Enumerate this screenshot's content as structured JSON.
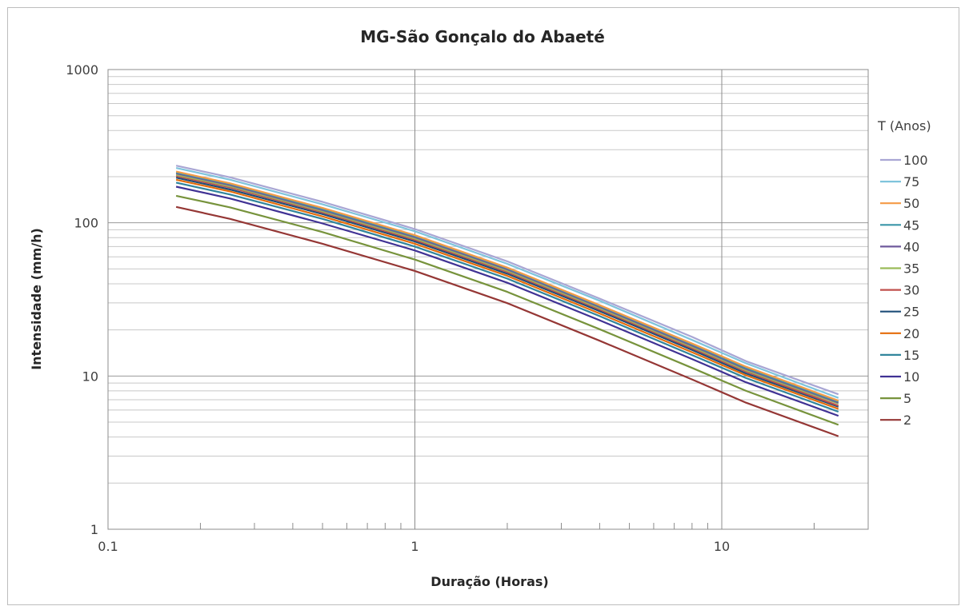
{
  "chart_data": {
    "type": "line",
    "title": "MG-São Gonçalo do Abaeté",
    "xlabel": "Duração (Horas)",
    "ylabel": "Intensidade (mm/h)",
    "xscale": "log",
    "yscale": "log",
    "xlim": [
      0.1,
      30
    ],
    "ylim": [
      1,
      1000
    ],
    "x_tick_labels": [
      "0.1",
      "1",
      "10"
    ],
    "y_tick_labels": [
      "1",
      "10",
      "100",
      "1000"
    ],
    "grid": true,
    "legend_title": "T (Anos)",
    "legend_position": "right",
    "x": [
      0.1667,
      0.25,
      0.5,
      1,
      2,
      4,
      8,
      12,
      24
    ],
    "series": [
      {
        "name": "100",
        "color": "#a9a6d4",
        "values": [
          236,
          198,
          137,
          91,
          56,
          32,
          18,
          12.5,
          7.6
        ]
      },
      {
        "name": "75",
        "color": "#7fc4dc",
        "values": [
          228,
          191,
          132,
          88,
          54,
          31,
          17.2,
          12.1,
          7.2
        ]
      },
      {
        "name": "50",
        "color": "#f59a46",
        "values": [
          216,
          181,
          125,
          83,
          51,
          29,
          16.3,
          11.5,
          6.9
        ]
      },
      {
        "name": "45",
        "color": "#3a96a8",
        "values": [
          213,
          179,
          123,
          82,
          50.5,
          28.7,
          16.1,
          11.3,
          6.8
        ]
      },
      {
        "name": "40",
        "color": "#6f5a9c",
        "values": [
          210,
          176,
          121,
          80.5,
          49.6,
          28.2,
          15.8,
          11.1,
          6.7
        ]
      },
      {
        "name": "35",
        "color": "#9bbb59",
        "values": [
          206,
          173,
          119,
          79,
          48.7,
          27.7,
          15.5,
          10.9,
          6.6
        ]
      },
      {
        "name": "30",
        "color": "#c0504d",
        "values": [
          202,
          170,
          117,
          77.5,
          47.8,
          27.2,
          15.2,
          10.7,
          6.4
        ]
      },
      {
        "name": "25",
        "color": "#1f4e79",
        "values": [
          197,
          165,
          114,
          75.5,
          46.5,
          26.5,
          14.8,
          10.4,
          6.3
        ]
      },
      {
        "name": "20",
        "color": "#e46c0a",
        "values": [
          191,
          160,
          110,
          73,
          45,
          25.6,
          14.3,
          10.1,
          6.1
        ]
      },
      {
        "name": "15",
        "color": "#31859c",
        "values": [
          183,
          153,
          106,
          70,
          43.2,
          24.6,
          13.7,
          9.7,
          5.85
        ]
      },
      {
        "name": "10",
        "color": "#403294",
        "values": [
          172,
          144,
          99,
          66,
          40.6,
          23.1,
          12.9,
          9.1,
          5.5
        ]
      },
      {
        "name": "5",
        "color": "#77933c",
        "values": [
          150,
          126,
          87,
          57.5,
          35.4,
          20.2,
          11.3,
          8,
          4.8
        ]
      },
      {
        "name": "2",
        "color": "#953735",
        "values": [
          127,
          106,
          73,
          48.5,
          29.9,
          17,
          9.5,
          6.7,
          4.05
        ]
      }
    ]
  }
}
